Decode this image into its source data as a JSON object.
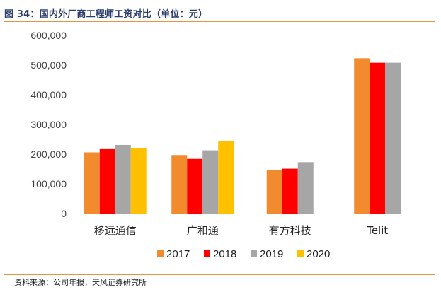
{
  "header": {
    "title": "图 34：国内外厂商工程师工资对比（单位：元）"
  },
  "footer": {
    "source": "资料来源：公司年报，天风证券研究所"
  },
  "colors": {
    "accent_rule": "#e8943a",
    "title": "#2b3e6e"
  },
  "chart_data": {
    "type": "bar",
    "title": "",
    "xlabel": "",
    "ylabel": "",
    "categories": [
      "移远通信",
      "广和通",
      "有方科技",
      "Telit"
    ],
    "yticks": [
      "0",
      "100,000",
      "200,000",
      "300,000",
      "400,000",
      "500,000",
      "600,000"
    ],
    "ylim": [
      0,
      600000
    ],
    "grid": false,
    "legend_position": "bottom",
    "series": [
      {
        "name": "2017",
        "color": "#f28a2e",
        "values": [
          206000,
          197000,
          147000,
          523000
        ]
      },
      {
        "name": "2018",
        "color": "#ff0000",
        "values": [
          217000,
          184000,
          151000,
          508000
        ]
      },
      {
        "name": "2019",
        "color": "#a6a6a6",
        "values": [
          231000,
          213000,
          173000,
          508000
        ]
      },
      {
        "name": "2020",
        "color": "#ffc000",
        "values": [
          219000,
          245000,
          null,
          null
        ]
      }
    ]
  }
}
